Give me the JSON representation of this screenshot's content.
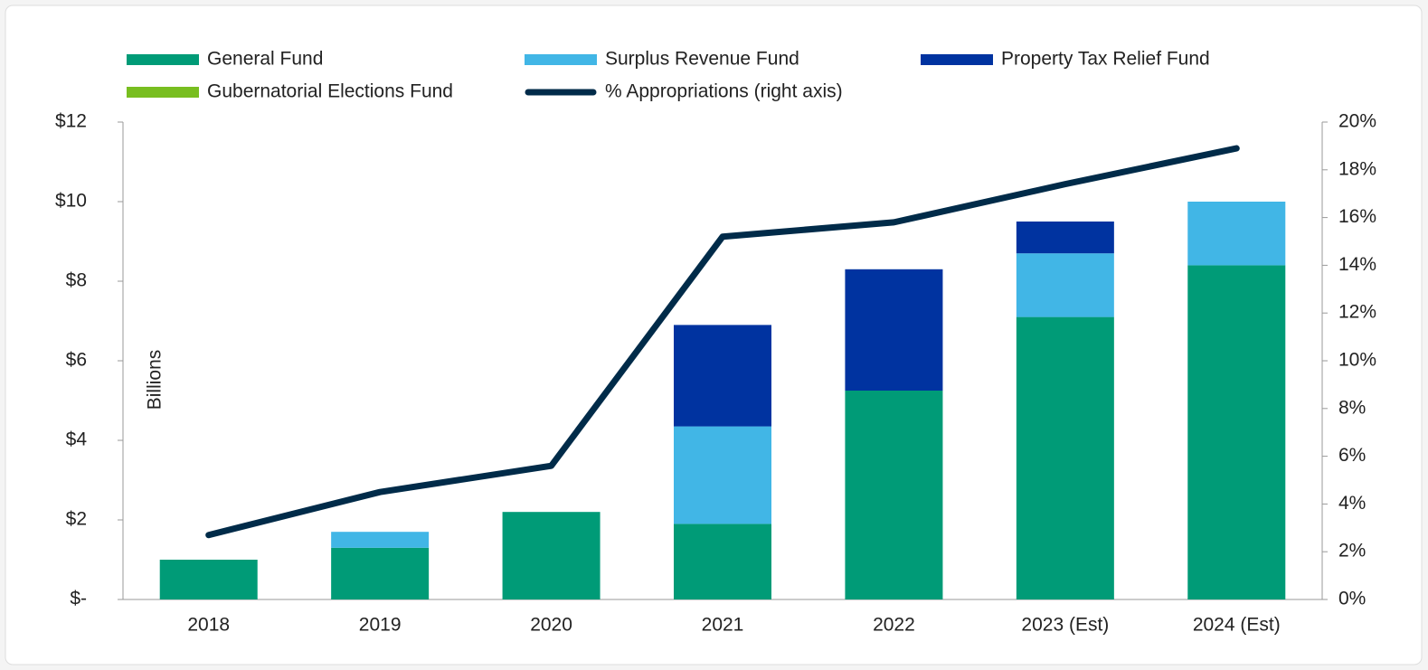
{
  "chart_data": {
    "type": "bar",
    "stacked": true,
    "y_label": "Billions",
    "categories": [
      "2018",
      "2019",
      "2020",
      "2021",
      "2022",
      "2023 (Est)",
      "2024 (Est)"
    ],
    "series": [
      {
        "name": "General Fund",
        "color": "#009b77",
        "values": [
          1.0,
          1.3,
          2.2,
          1.9,
          5.25,
          7.1,
          8.4
        ]
      },
      {
        "name": "Surplus Revenue Fund",
        "color": "#41b6e6",
        "values": [
          0,
          0.4,
          0,
          2.45,
          0,
          1.6,
          1.6
        ]
      },
      {
        "name": "Property Tax Relief Fund",
        "color": "#0033a0",
        "values": [
          0,
          0,
          0,
          2.55,
          3.05,
          0.8,
          0
        ]
      },
      {
        "name": "Gubernatorial Elections Fund",
        "color": "#78be20",
        "values": [
          0,
          0,
          0,
          0,
          0,
          0,
          0
        ]
      },
      {
        "name": "% Appropriations (right axis)",
        "color": "#002b49",
        "type": "line",
        "axis": "y2",
        "values": [
          2.7,
          4.5,
          5.6,
          15.2,
          15.8,
          17.4,
          18.9
        ]
      }
    ],
    "ylim": [
      0,
      12
    ],
    "yticks": [
      {
        "value": 0,
        "label": "$-"
      },
      {
        "value": 2,
        "label": "$2"
      },
      {
        "value": 4,
        "label": "$4"
      },
      {
        "value": 6,
        "label": "$6"
      },
      {
        "value": 8,
        "label": "$8"
      },
      {
        "value": 10,
        "label": "$10"
      },
      {
        "value": 12,
        "label": "$12"
      }
    ],
    "y2lim": [
      0,
      20
    ],
    "y2ticks": [
      {
        "value": 0,
        "label": "0%"
      },
      {
        "value": 2,
        "label": "2%"
      },
      {
        "value": 4,
        "label": "4%"
      },
      {
        "value": 6,
        "label": "6%"
      },
      {
        "value": 8,
        "label": "8%"
      },
      {
        "value": 10,
        "label": "10%"
      },
      {
        "value": 12,
        "label": "12%"
      },
      {
        "value": 14,
        "label": "14%"
      },
      {
        "value": 16,
        "label": "16%"
      },
      {
        "value": 18,
        "label": "18%"
      },
      {
        "value": 20,
        "label": "20%"
      }
    ],
    "grid": false,
    "legend": "top"
  }
}
